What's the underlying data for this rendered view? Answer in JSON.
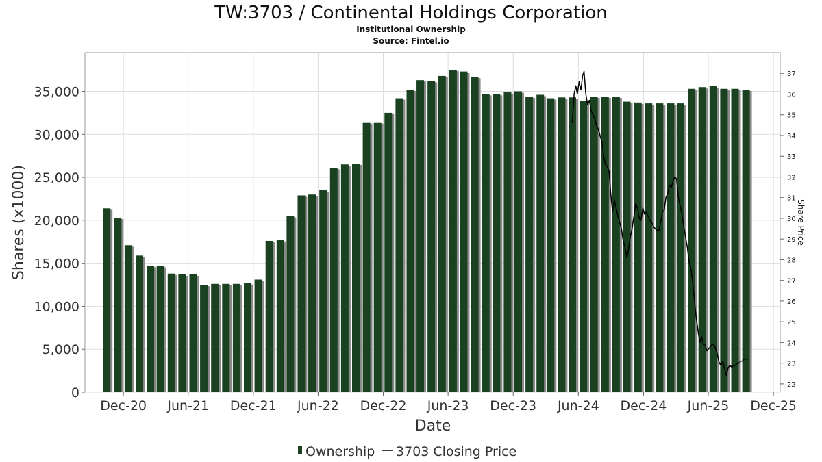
{
  "chart_data": {
    "type": "bar",
    "title": "TW:3703 / Continental Holdings Corporation",
    "subtitle": "Institutional Ownership",
    "source": "Source: Fintel.io",
    "xlabel": "Date",
    "ylabel": "Shares (x1000)",
    "y2label": "Share Price",
    "ylim": [
      0,
      39500
    ],
    "y2lim": [
      21.6,
      38.0
    ],
    "xlim": [
      "2020-08-15",
      "2025-12-20"
    ],
    "grid": true,
    "legend_position": "bottom-center",
    "y_ticks": [
      {
        "value": 0,
        "label": "0"
      },
      {
        "value": 5000,
        "label": "5,000"
      },
      {
        "value": 10000,
        "label": "10,000"
      },
      {
        "value": 15000,
        "label": "15,000"
      },
      {
        "value": 20000,
        "label": "20,000"
      },
      {
        "value": 25000,
        "label": "25,000"
      },
      {
        "value": 30000,
        "label": "30,000"
      },
      {
        "value": 35000,
        "label": "35,000"
      }
    ],
    "y2_ticks": [
      22,
      23,
      24,
      25,
      26,
      27,
      28,
      29,
      30,
      31,
      32,
      33,
      34,
      35,
      36,
      37
    ],
    "x_ticks": [
      {
        "date": "2020-12-01",
        "label": "Dec-20"
      },
      {
        "date": "2021-06-01",
        "label": "Jun-21"
      },
      {
        "date": "2021-12-01",
        "label": "Dec-21"
      },
      {
        "date": "2022-06-01",
        "label": "Jun-22"
      },
      {
        "date": "2022-12-01",
        "label": "Dec-22"
      },
      {
        "date": "2023-06-01",
        "label": "Jun-23"
      },
      {
        "date": "2023-12-01",
        "label": "Dec-23"
      },
      {
        "date": "2024-06-01",
        "label": "Jun-24"
      },
      {
        "date": "2024-12-01",
        "label": "Dec-24"
      },
      {
        "date": "2025-06-01",
        "label": "Jun-25"
      },
      {
        "date": "2025-12-01",
        "label": "Dec-25"
      }
    ],
    "series": [
      {
        "name": "Ownership",
        "type": "bar",
        "color": "#1a4220",
        "x": [
          "2020-10-15",
          "2020-11-15",
          "2020-12-15",
          "2021-01-15",
          "2021-02-15",
          "2021-03-15",
          "2021-04-15",
          "2021-05-15",
          "2021-06-15",
          "2021-07-15",
          "2021-08-15",
          "2021-09-15",
          "2021-10-15",
          "2021-11-15",
          "2021-12-15",
          "2022-01-15",
          "2022-02-15",
          "2022-03-15",
          "2022-04-15",
          "2022-05-15",
          "2022-06-15",
          "2022-07-15",
          "2022-08-15",
          "2022-09-15",
          "2022-10-15",
          "2022-11-15",
          "2022-12-15",
          "2023-01-15",
          "2023-02-15",
          "2023-03-15",
          "2023-04-15",
          "2023-05-15",
          "2023-06-15",
          "2023-07-15",
          "2023-08-15",
          "2023-09-15",
          "2023-10-15",
          "2023-11-15",
          "2023-12-15",
          "2024-01-15",
          "2024-02-15",
          "2024-03-15",
          "2024-04-15",
          "2024-05-15",
          "2024-06-15",
          "2024-07-15",
          "2024-08-15",
          "2024-09-15",
          "2024-10-15",
          "2024-11-15",
          "2024-12-15",
          "2025-01-15",
          "2025-02-15",
          "2025-03-15",
          "2025-04-15",
          "2025-05-15",
          "2025-06-15",
          "2025-07-15",
          "2025-08-15",
          "2025-09-15"
        ],
        "values": [
          21400,
          20300,
          17100,
          15900,
          14700,
          14700,
          13800,
          13700,
          13700,
          12500,
          12600,
          12600,
          12600,
          12700,
          13100,
          17600,
          17700,
          20500,
          22900,
          23000,
          23500,
          26100,
          26500,
          26600,
          31400,
          31400,
          32500,
          34200,
          35200,
          36300,
          36200,
          36800,
          37500,
          37300,
          36700,
          34700,
          34700,
          34900,
          35000,
          34400,
          34600,
          34200,
          34300,
          34300,
          33900,
          34400,
          34400,
          34400,
          33800,
          33700,
          33600,
          33600,
          33600,
          33600,
          35300,
          35500,
          35600,
          35300,
          35300,
          35200
        ]
      },
      {
        "name": "3703 Closing Price",
        "type": "line",
        "color": "#000000",
        "x": [
          "2024-05-15",
          "2024-05-20",
          "2024-05-25",
          "2024-05-29",
          "2024-06-03",
          "2024-06-08",
          "2024-06-13",
          "2024-06-17",
          "2024-06-22",
          "2024-06-27",
          "2024-07-02",
          "2024-07-07",
          "2024-07-12",
          "2024-07-17",
          "2024-07-22",
          "2024-07-27",
          "2024-08-01",
          "2024-08-06",
          "2024-08-11",
          "2024-08-16",
          "2024-08-21",
          "2024-08-26",
          "2024-08-31",
          "2024-09-05",
          "2024-09-10",
          "2024-09-15",
          "2024-09-20",
          "2024-09-25",
          "2024-09-30",
          "2024-10-05",
          "2024-10-10",
          "2024-10-15",
          "2024-10-20",
          "2024-10-25",
          "2024-10-30",
          "2024-11-04",
          "2024-11-09",
          "2024-11-14",
          "2024-11-19",
          "2024-11-24",
          "2024-11-29",
          "2024-12-04",
          "2024-12-09",
          "2024-12-14",
          "2024-12-19",
          "2024-12-24",
          "2024-12-29",
          "2025-01-03",
          "2025-01-08",
          "2025-01-13",
          "2025-01-18",
          "2025-01-23",
          "2025-01-28",
          "2025-02-02",
          "2025-02-07",
          "2025-02-12",
          "2025-02-17",
          "2025-02-22",
          "2025-02-27",
          "2025-03-04",
          "2025-03-09",
          "2025-03-14",
          "2025-03-19",
          "2025-03-24",
          "2025-03-29",
          "2025-04-03",
          "2025-04-08",
          "2025-04-13",
          "2025-04-18",
          "2025-04-23",
          "2025-04-28",
          "2025-05-03",
          "2025-05-08",
          "2025-05-13",
          "2025-05-18",
          "2025-05-23",
          "2025-05-28",
          "2025-06-02",
          "2025-06-07",
          "2025-06-12",
          "2025-06-17",
          "2025-06-22",
          "2025-06-27",
          "2025-07-02",
          "2025-07-07",
          "2025-07-12",
          "2025-07-17",
          "2025-07-22",
          "2025-07-27",
          "2025-08-01",
          "2025-08-06",
          "2025-08-11",
          "2025-08-16",
          "2025-08-21",
          "2025-08-26",
          "2025-08-31",
          "2025-09-05",
          "2025-09-10",
          "2025-09-15",
          "2025-09-20"
        ],
        "values": [
          34.6,
          36.0,
          36.4,
          36.0,
          36.6,
          36.2,
          36.9,
          37.1,
          36.0,
          35.5,
          35.7,
          35.2,
          35.0,
          34.8,
          34.5,
          34.3,
          34.0,
          33.7,
          33.0,
          32.6,
          32.5,
          32.3,
          31.2,
          30.3,
          30.9,
          30.5,
          30.1,
          29.8,
          29.5,
          28.9,
          28.6,
          28.1,
          28.5,
          29.1,
          29.5,
          30.1,
          30.7,
          30.5,
          30.0,
          29.9,
          30.5,
          30.2,
          30.3,
          30.1,
          29.9,
          29.8,
          29.6,
          29.5,
          29.4,
          29.4,
          29.8,
          30.3,
          30.4,
          31.0,
          31.2,
          31.6,
          31.5,
          31.8,
          32.0,
          31.9,
          31.0,
          30.6,
          30.2,
          29.6,
          29.1,
          28.6,
          27.9,
          27.6,
          26.9,
          26.1,
          25.2,
          24.6,
          24.0,
          24.3,
          23.9,
          23.9,
          23.6,
          23.7,
          23.8,
          23.9,
          23.9,
          23.7,
          23.4,
          23.0,
          22.9,
          23.1,
          22.7,
          22.4,
          22.8,
          22.9,
          22.8,
          22.9,
          22.9,
          23.0,
          23.0,
          23.1,
          23.1,
          23.2,
          23.2,
          23.2
        ]
      }
    ]
  }
}
